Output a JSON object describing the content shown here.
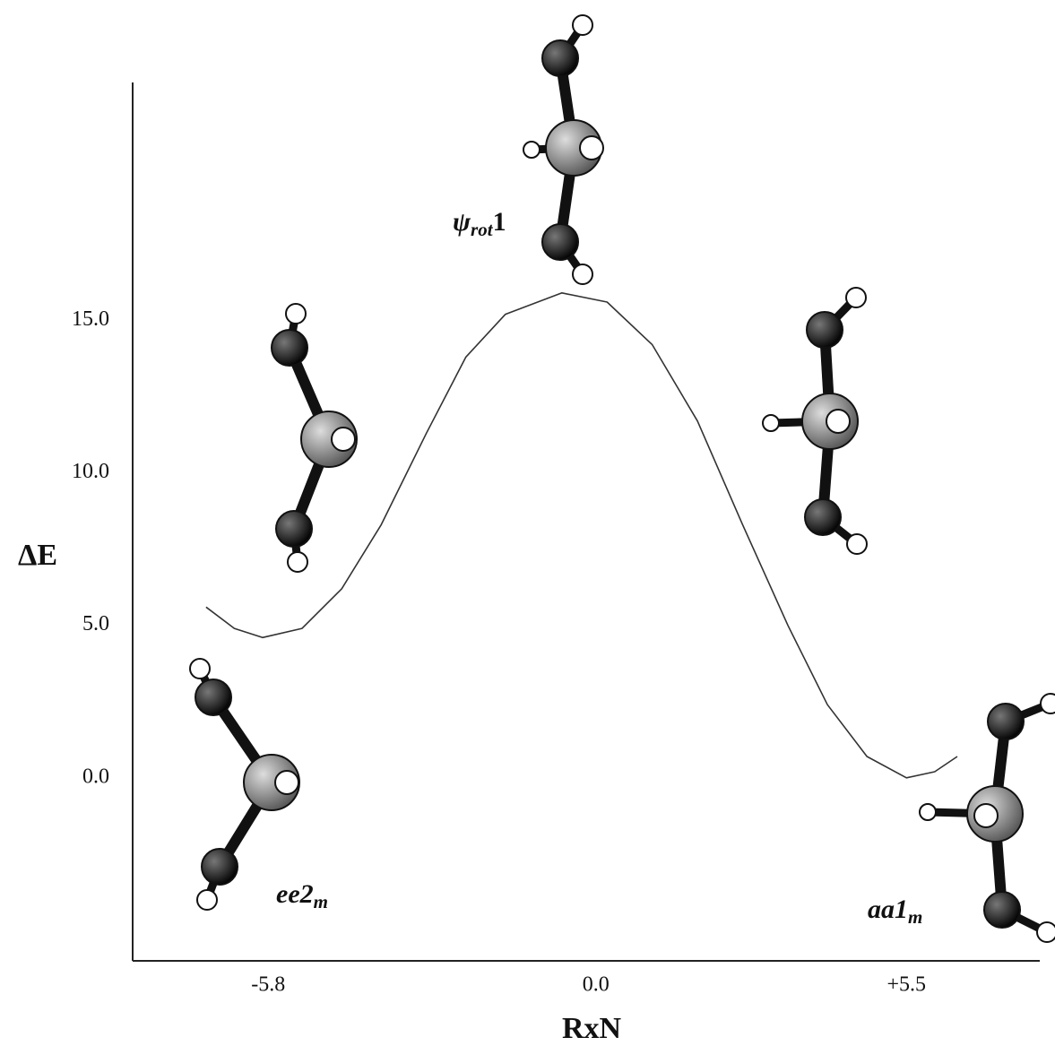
{
  "chart_data": {
    "type": "line",
    "x_label": "RxN",
    "y_label": "ΔE",
    "xlim": [
      -8.2,
      7.86
    ],
    "ylim": [
      -6,
      22.8
    ],
    "xticks": [
      {
        "value": -5.8,
        "label": "-5.8"
      },
      {
        "value": 0,
        "label": "0.0"
      },
      {
        "value": 5.5,
        "label": "+5.5"
      }
    ],
    "yticks": [
      {
        "value": 0,
        "label": "0.0"
      },
      {
        "value": 5,
        "label": "5.0"
      },
      {
        "value": 10,
        "label": "10.0"
      },
      {
        "value": 15,
        "label": "15.0"
      }
    ],
    "grid": false,
    "series": [
      {
        "color": "#333333",
        "x": [
          -6.9,
          -6.4,
          -5.9,
          -5.2,
          -4.5,
          -3.8,
          -3.0,
          -2.3,
          -1.6,
          -0.6,
          0.2,
          1.0,
          1.8,
          2.6,
          3.4,
          4.1,
          4.8,
          5.5,
          6.0,
          6.4
        ],
        "values": [
          5.6,
          4.9,
          4.6,
          4.9,
          6.2,
          8.3,
          11.3,
          13.8,
          15.2,
          15.9,
          15.6,
          14.2,
          11.7,
          8.3,
          5.0,
          2.4,
          0.7,
          0.0,
          0.2,
          0.7
        ]
      }
    ],
    "annotations": [
      {
        "label": "ψ",
        "subscript": "rot",
        "suffix": "1"
      },
      {
        "label": "ee2",
        "subscript": "m"
      },
      {
        "label": "aa1",
        "subscript": "m"
      }
    ]
  }
}
